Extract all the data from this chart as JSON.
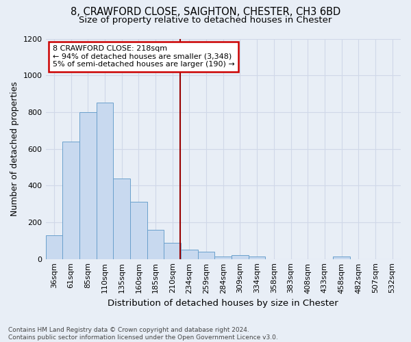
{
  "title_line1": "8, CRAWFORD CLOSE, SAIGHTON, CHESTER, CH3 6BD",
  "title_line2": "Size of property relative to detached houses in Chester",
  "xlabel": "Distribution of detached houses by size in Chester",
  "ylabel": "Number of detached properties",
  "categories": [
    "36sqm",
    "61sqm",
    "85sqm",
    "110sqm",
    "135sqm",
    "160sqm",
    "185sqm",
    "210sqm",
    "234sqm",
    "259sqm",
    "284sqm",
    "309sqm",
    "334sqm",
    "358sqm",
    "383sqm",
    "408sqm",
    "433sqm",
    "458sqm",
    "482sqm",
    "507sqm",
    "532sqm"
  ],
  "values": [
    130,
    640,
    800,
    850,
    440,
    310,
    160,
    90,
    50,
    40,
    15,
    20,
    12,
    0,
    0,
    0,
    0,
    12,
    0,
    0,
    0
  ],
  "bar_color": "#c8d9ef",
  "bar_edge_color": "#6aa0cc",
  "background_color": "#e8eef6",
  "grid_color": "#d0d8e8",
  "vline_x_index": 7.45,
  "vline_color": "#990000",
  "annotation_line1": "8 CRAWFORD CLOSE: 218sqm",
  "annotation_line2": "← 94% of detached houses are smaller (3,348)",
  "annotation_line3": "5% of semi-detached houses are larger (190) →",
  "annotation_box_color": "#ffffff",
  "annotation_box_edge": "#cc0000",
  "ylim": [
    0,
    1200
  ],
  "yticks": [
    0,
    200,
    400,
    600,
    800,
    1000,
    1200
  ],
  "footnote": "Contains HM Land Registry data © Crown copyright and database right 2024.\nContains public sector information licensed under the Open Government Licence v3.0.",
  "title_fontsize": 10.5,
  "subtitle_fontsize": 9.5,
  "axis_label_fontsize": 9,
  "tick_fontsize": 8,
  "annotation_fontsize": 8,
  "footnote_fontsize": 6.5
}
